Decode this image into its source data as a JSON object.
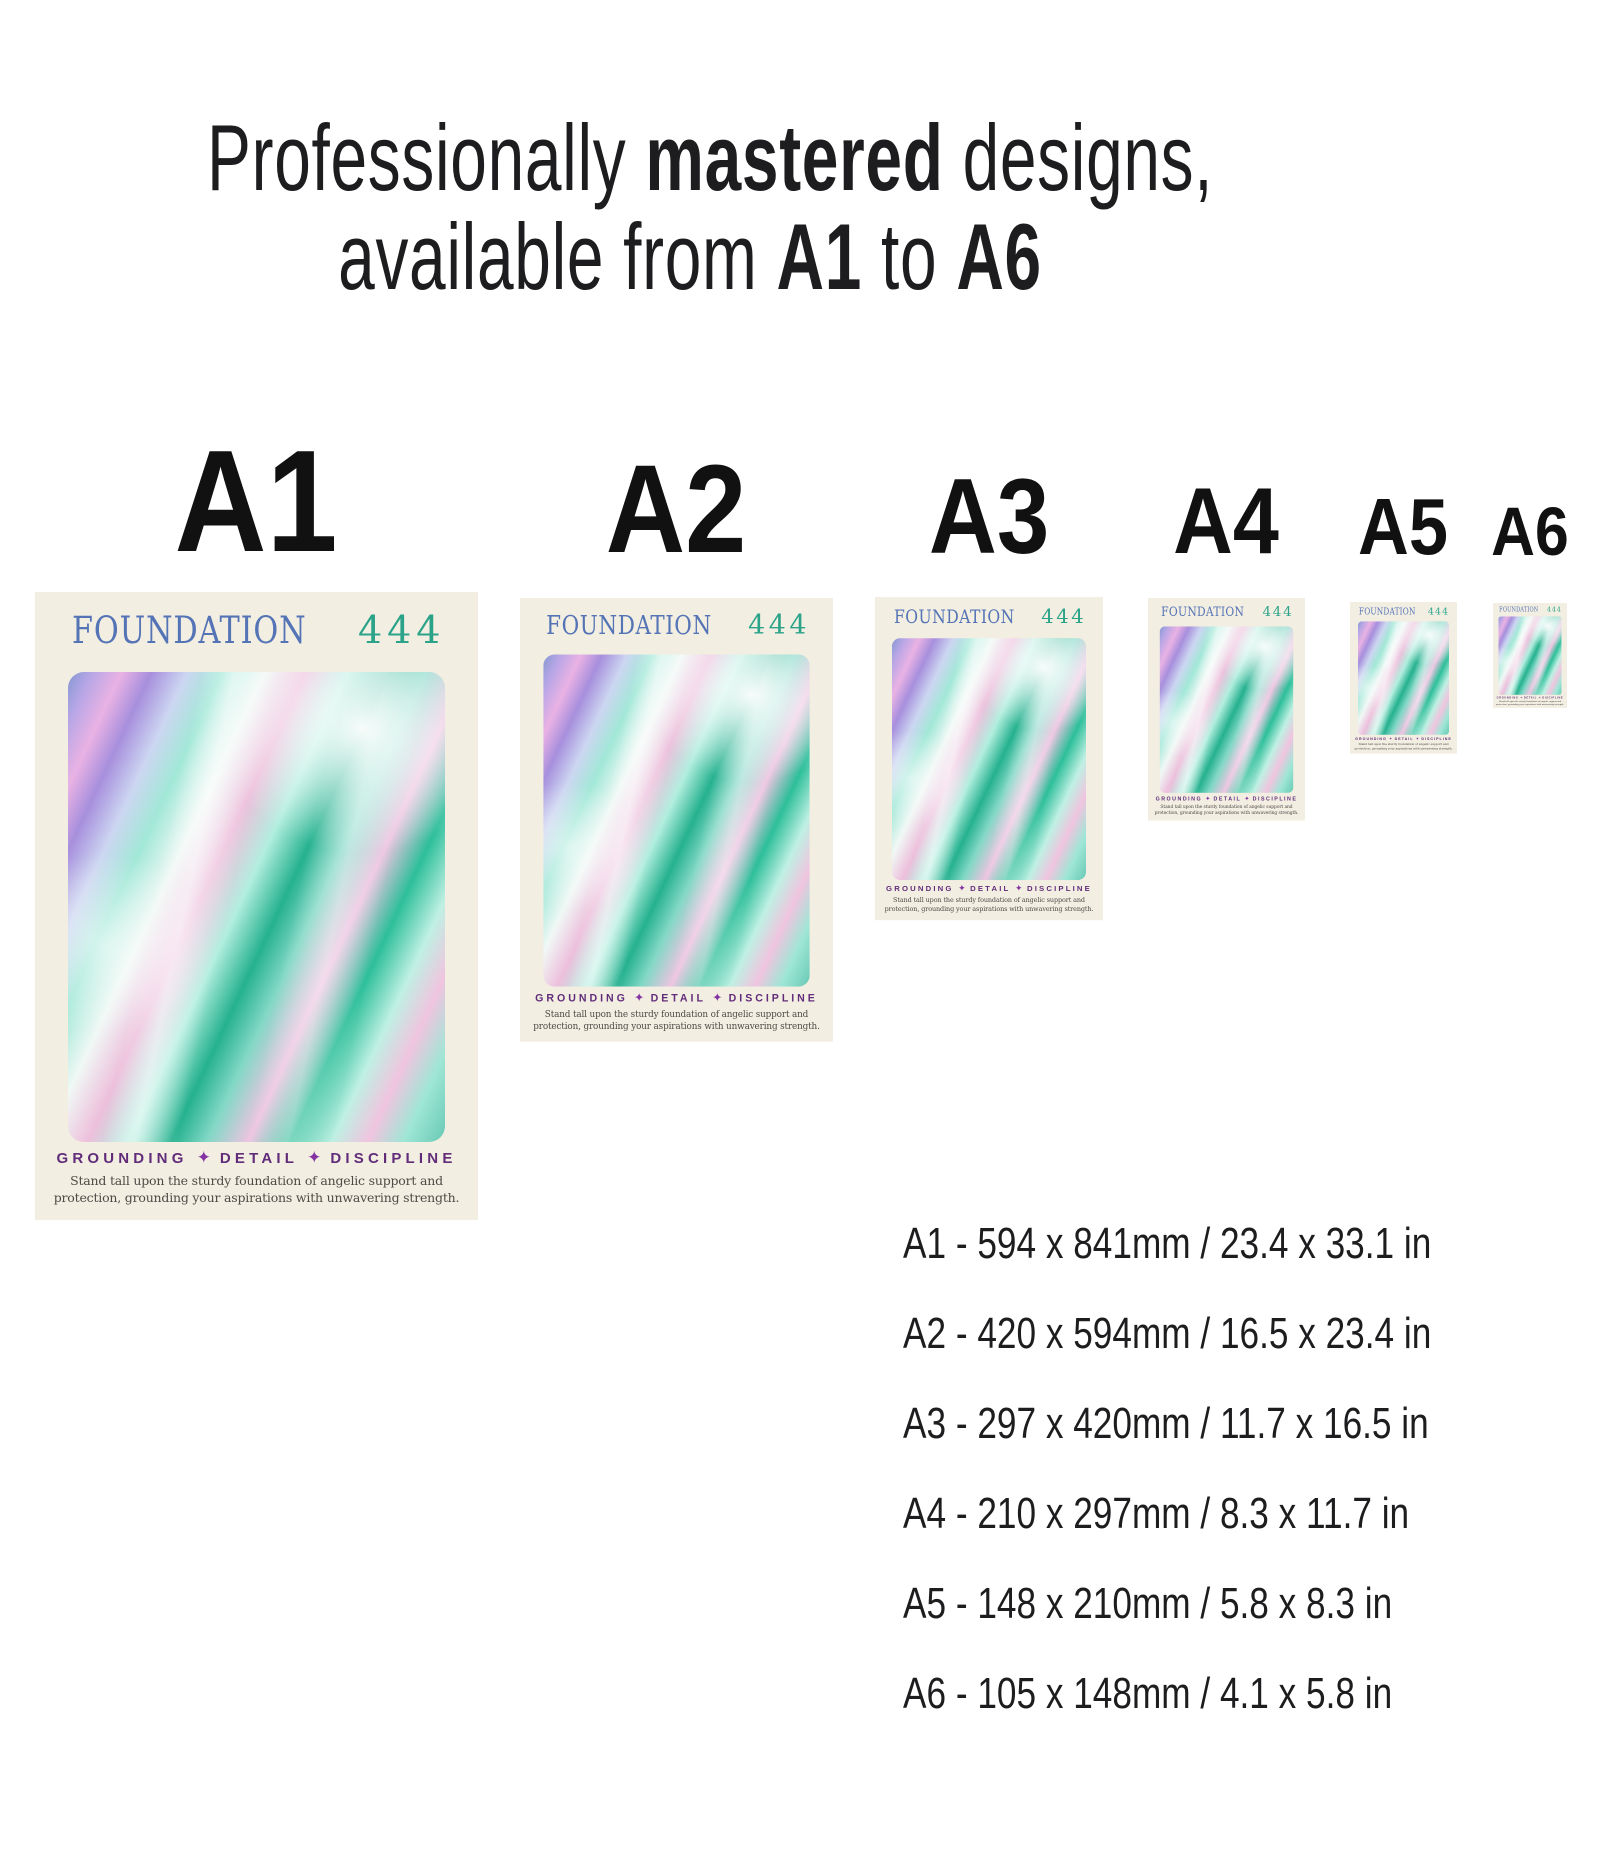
{
  "title": {
    "line1_pre": "Professionally ",
    "line1_bold": "mastered",
    "line1_post": " designs,",
    "line2_pre": "available from ",
    "line2_b1": "A1",
    "line2_mid": " to ",
    "line2_b2": "A6"
  },
  "poster": {
    "brand": "FOUNDATION",
    "number": "444",
    "tagline": [
      "GROUNDING",
      "DETAIL",
      "DISCIPLINE"
    ],
    "separator": "✦",
    "description": [
      "Stand tall upon the sturdy foundation of angelic support and",
      "protection, grounding your aspirations with unwavering strength."
    ]
  },
  "sizes": [
    {
      "label": "A1",
      "dimensions_mm": "594 x 841mm",
      "dimensions_in": "23.4 x 33.1 in",
      "spec": "A1 - 594 x 841mm / 23.4 x 33.1 in"
    },
    {
      "label": "A2",
      "dimensions_mm": "420 x 594mm",
      "dimensions_in": "16.5 x 23.4 in",
      "spec": "A2 - 420 x 594mm / 16.5 x 23.4 in"
    },
    {
      "label": "A3",
      "dimensions_mm": "297 x 420mm",
      "dimensions_in": "11.7 x 16.5 in",
      "spec": "A3 - 297 x 420mm / 11.7 x 16.5 in"
    },
    {
      "label": "A4",
      "dimensions_mm": "210 x 297mm",
      "dimensions_in": "8.3 x 11.7 in",
      "spec": "A4 - 210 x 297mm / 8.3 x 11.7 in"
    },
    {
      "label": "A5",
      "dimensions_mm": "148 x 210mm",
      "dimensions_in": "5.8 x 8.3 in",
      "spec": "A5 - 148 x 210mm / 5.8 x 8.3 in"
    },
    {
      "label": "A6",
      "dimensions_mm": "105 x 148mm",
      "dimensions_in": "4.1 x 5.8 in",
      "spec": "A6 - 105 x 148mm / 4.1 x 5.8 in"
    }
  ],
  "colors": {
    "page_bg": "#ffffff",
    "poster_bg": "#f2eee2",
    "brand_blue": "#5474b6",
    "number_green": "#2ba389",
    "tagline_purple": "#612c7a",
    "separator_purple": "#8434a2",
    "description_gray": "#4f4a46",
    "text_black": "#1d1d1f"
  }
}
